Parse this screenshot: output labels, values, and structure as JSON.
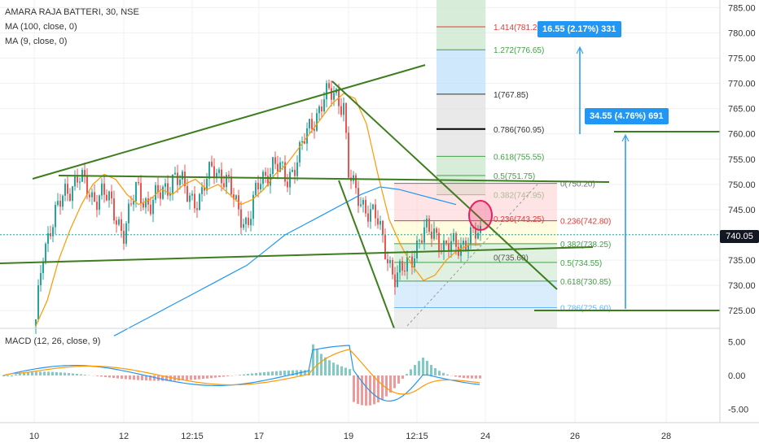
{
  "legend": {
    "main": "AMARA RAJA BATTERI, 30, NSE",
    "ma100": "MA (100, close, 0)",
    "ma9": "MA (9, close, 0)",
    "macd": "MACD (12, 26, close, 9)"
  },
  "last_price": "740.05",
  "badges": {
    "upper": "16.55 (2.17%) 331",
    "lower": "34.55 (4.76%) 691"
  },
  "colors": {
    "up": "#26a69a",
    "down": "#ef5350",
    "ma100": "#2196f3",
    "ma9": "#ff9800",
    "trend": "#3e7d1e",
    "fib_text_red": "#e53935",
    "fib_text_green": "#43a047",
    "fib_text_grey": "#555555",
    "fib_text_blue": "#64b5f6"
  },
  "chart_data": [
    {
      "type": "line",
      "title": "AMARA RAJA BATTERI, 30, NSE",
      "ylim": [
        721.5,
        786.5
      ],
      "y_ticks": [
        "785.00",
        "780.00",
        "775.00",
        "770.00",
        "765.00",
        "760.00",
        "755.00",
        "750.00",
        "745.00",
        "740.00",
        "735.00",
        "730.00",
        "725.00"
      ],
      "x_ticks": [
        "10",
        "12",
        "12:15",
        "17",
        "19",
        "12:15",
        "24",
        "26",
        "28"
      ],
      "fib_left": [
        {
          "label": "0.236(743.25)",
          "value": 743.25
        },
        {
          "label": "0(735.60)",
          "value": 735.6
        }
      ],
      "fib_mid": [
        {
          "label": "1.414(781.20)",
          "value": 781.2
        },
        {
          "label": "1.272(776.65)",
          "value": 776.65
        },
        {
          "label": "1(767.85)",
          "value": 767.85
        },
        {
          "label": "0.786(760.95)",
          "value": 760.95
        },
        {
          "label": "0.618(755.55)",
          "value": 755.55
        },
        {
          "label": "0.5(751.75)",
          "value": 751.75
        },
        {
          "label": "0.382(747.95)",
          "value": 747.95
        }
      ],
      "fib_right": [
        {
          "label": "0(750.20)",
          "value": 750.2
        },
        {
          "label": "0.236(742.80)",
          "value": 742.8
        },
        {
          "label": "0.382(738.25)",
          "value": 738.25
        },
        {
          "label": "0.5(734.55)",
          "value": 734.55
        },
        {
          "label": "0.618(730.85)",
          "value": 730.85
        },
        {
          "label": "0.786(725.60)",
          "value": 725.6
        }
      ],
      "series": [
        {
          "name": "MA (9, close, 0)",
          "values": [
            722,
            727,
            735,
            741,
            746,
            750,
            752,
            751,
            748,
            746,
            747,
            749,
            748,
            750,
            751,
            749,
            750,
            748,
            746,
            747,
            749,
            752,
            754,
            757,
            760,
            763,
            766,
            768,
            767,
            762,
            752,
            743,
            738,
            734,
            731,
            732,
            735,
            737,
            738,
            738
          ]
        },
        {
          "name": "MA (100, close, 0)",
          "values": [
            720,
            722,
            724,
            726,
            728,
            730,
            732,
            734,
            737,
            740,
            742,
            744,
            746,
            748,
            749.5,
            749,
            748,
            747,
            746
          ]
        }
      ]
    },
    {
      "type": "bar",
      "title": "MACD (12, 26, close, 9)",
      "ylim": [
        -7,
        7
      ],
      "y_ticks": [
        "5.00",
        "0.00",
        "-5.00"
      ]
    }
  ]
}
